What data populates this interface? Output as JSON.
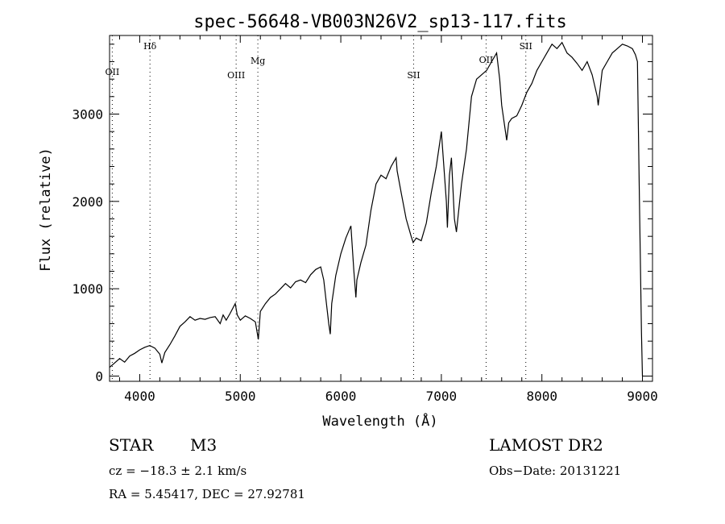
{
  "chart_data": {
    "type": "line",
    "title": "spec-56648-VB003N26V2_sp13-117.fits",
    "xlabel": "Wavelength (Å)",
    "ylabel": "Flux (relative)",
    "xlim": [
      3700,
      9100
    ],
    "ylim": [
      -60,
      3900
    ],
    "xticks": [
      4000,
      5000,
      6000,
      7000,
      8000,
      9000
    ],
    "yticks": [
      0,
      1000,
      2000,
      3000
    ],
    "grid": false,
    "line_color": "#000000",
    "series": [
      {
        "x": [
          3700,
          3750,
          3800,
          3850,
          3900,
          3950,
          4000,
          4050,
          4100,
          4150,
          4200,
          4220,
          4250,
          4300,
          4350,
          4400,
          4450,
          4500,
          4550,
          4600,
          4650,
          4700,
          4750,
          4800,
          4830,
          4860,
          4900,
          4950,
          4970,
          5000,
          5050,
          5100,
          5150,
          5180,
          5200,
          5250,
          5300,
          5350,
          5400,
          5450,
          5500,
          5550,
          5600,
          5650,
          5700,
          5750,
          5800,
          5830,
          5860,
          5880,
          5895,
          5910,
          5950,
          6000,
          6050,
          6100,
          6130,
          6150,
          6160,
          6200,
          6250,
          6300,
          6350,
          6400,
          6450,
          6500,
          6550,
          6560,
          6600,
          6650,
          6700,
          6720,
          6750,
          6800,
          6850,
          6900,
          6950,
          7000,
          7050,
          7060,
          7080,
          7100,
          7130,
          7150,
          7200,
          7250,
          7300,
          7350,
          7400,
          7450,
          7500,
          7550,
          7580,
          7600,
          7650,
          7670,
          7700,
          7750,
          7800,
          7850,
          7900,
          7950,
          8000,
          8050,
          8100,
          8150,
          8200,
          8250,
          8300,
          8350,
          8400,
          8450,
          8500,
          8550,
          8560,
          8600,
          8650,
          8700,
          8750,
          8800,
          8850,
          8900,
          8930,
          8950,
          8970,
          8990,
          9000
        ],
        "values": [
          100,
          150,
          200,
          160,
          230,
          260,
          300,
          330,
          350,
          320,
          250,
          150,
          270,
          360,
          460,
          570,
          620,
          680,
          640,
          660,
          650,
          670,
          680,
          600,
          700,
          640,
          720,
          830,
          700,
          640,
          690,
          660,
          620,
          420,
          740,
          830,
          900,
          940,
          1000,
          1060,
          1010,
          1080,
          1100,
          1070,
          1160,
          1220,
          1250,
          1100,
          800,
          600,
          480,
          830,
          1150,
          1400,
          1580,
          1720,
          1200,
          900,
          1100,
          1300,
          1500,
          1900,
          2200,
          2300,
          2260,
          2400,
          2500,
          2350,
          2100,
          1800,
          1600,
          1530,
          1580,
          1550,
          1750,
          2100,
          2400,
          2800,
          2000,
          1700,
          2300,
          2500,
          1800,
          1650,
          2200,
          2600,
          3200,
          3400,
          3450,
          3500,
          3600,
          3700,
          3400,
          3100,
          2700,
          2900,
          2950,
          2980,
          3100,
          3250,
          3350,
          3500,
          3600,
          3700,
          3800,
          3750,
          3820,
          3700,
          3650,
          3580,
          3500,
          3600,
          3450,
          3200,
          3100,
          3500,
          3600,
          3700,
          3750,
          3800,
          3780,
          3750,
          3680,
          3600,
          2000,
          500,
          0
        ]
      }
    ],
    "lines": [
      {
        "label": "OII",
        "x": 3727
      },
      {
        "label": "Hδ",
        "x": 4102
      },
      {
        "label": "OIII",
        "x": 4959
      },
      {
        "label": "Mg",
        "x": 5175
      },
      {
        "label": "SII",
        "x": 6724
      },
      {
        "label": "OII",
        "x": 7445
      },
      {
        "label": "SII",
        "x": 7840
      }
    ]
  },
  "info": {
    "object_type": "STAR",
    "object_class": "M3",
    "survey": "LAMOST DR2",
    "cz": "cz = −18.3 ± 2.1 km/s",
    "obs_date": "Obs−Date: 20131221",
    "coords": "RA =   5.45417, DEC =  27.92781"
  }
}
